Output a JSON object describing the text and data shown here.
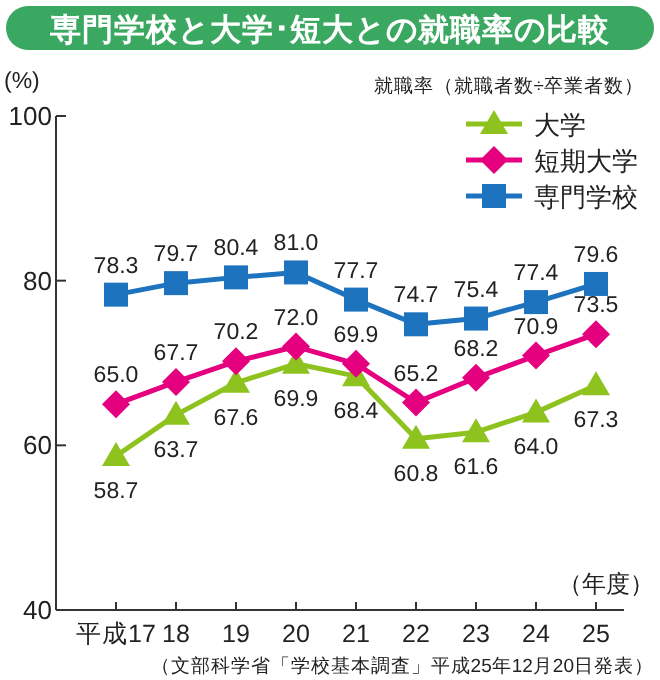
{
  "chart_data": {
    "type": "line",
    "title": "専門学校と大学･短大との就職率の比較",
    "subtitle": "就職率（就職者数÷卒業者数）",
    "ylabel": "(%)",
    "xlabel": "（年度）",
    "annotations": [
      "（文部科学省「学校基本調査」平成25年12月20日発表）"
    ],
    "categories": [
      "平成17",
      "18",
      "19",
      "20",
      "21",
      "22",
      "23",
      "24",
      "25"
    ],
    "series": [
      {
        "name": "大学",
        "color": "#8dc21f",
        "marker": "triangle",
        "values": [
          58.7,
          63.7,
          67.6,
          69.9,
          68.4,
          60.8,
          61.6,
          64.0,
          67.3
        ],
        "value_labels": [
          "58.7",
          "63.7",
          "67.6",
          "69.9",
          "68.4",
          "60.8",
          "61.6",
          "64.0",
          "67.3"
        ]
      },
      {
        "name": "短期大学",
        "color": "#e4007f",
        "marker": "diamond",
        "values": [
          65.0,
          67.7,
          70.2,
          72.0,
          69.9,
          65.2,
          68.2,
          70.9,
          73.5
        ],
        "value_labels": [
          "65.0",
          "67.7",
          "70.2",
          "72.0",
          "69.9",
          "65.2",
          "68.2",
          "70.9",
          "73.5"
        ]
      },
      {
        "name": "専門学校",
        "color": "#1e73be",
        "marker": "square",
        "values": [
          78.3,
          79.7,
          80.4,
          81.0,
          77.7,
          74.7,
          75.4,
          77.4,
          79.6
        ],
        "value_labels": [
          "78.3",
          "79.7",
          "80.4",
          "81.0",
          "77.7",
          "74.7",
          "75.4",
          "77.4",
          "79.6"
        ]
      }
    ],
    "ylim": [
      40,
      100
    ],
    "yticks": [
      40,
      60,
      80,
      100
    ],
    "legend": "top right",
    "grid": false
  }
}
